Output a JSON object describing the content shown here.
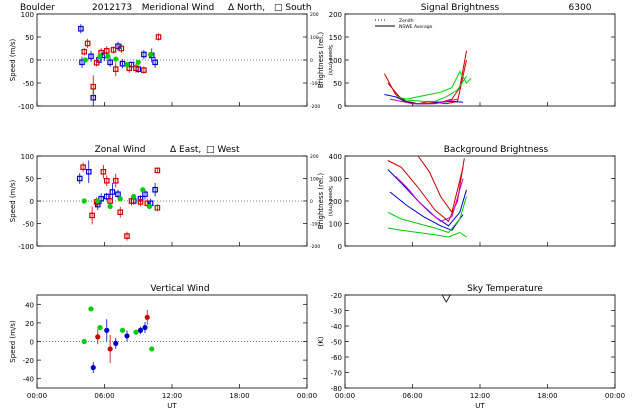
{
  "header": {
    "site": "Boulder",
    "date_code": "2012173"
  },
  "chart_data": [
    {
      "id": "meridional",
      "type": "scatter",
      "title": "Meridional Wind",
      "legend_a": "Δ North,",
      "legend_b": "□ South",
      "ylabel": "Speed (m/s)",
      "y2label": "Speed (m/s)",
      "xlim": [
        0,
        24
      ],
      "ylim": [
        -100,
        100
      ],
      "yticks": [
        -100,
        -50,
        0,
        50,
        100
      ],
      "y2ticks": [
        "-200",
        "-100",
        "0",
        "100",
        "200"
      ],
      "xtick_labels": [],
      "series": [
        {
          "name": "blue",
          "color": "#0000cc",
          "points": [
            [
              3.9,
              68,
              10
            ],
            [
              4.0,
              -5,
              12
            ],
            [
              4.8,
              8,
              12
            ],
            [
              5.0,
              -82,
              20
            ],
            [
              5.5,
              0,
              10
            ],
            [
              6.0,
              10,
              12
            ],
            [
              6.5,
              -5,
              10
            ],
            [
              7.2,
              30,
              10
            ],
            [
              7.6,
              -8,
              10
            ],
            [
              8.4,
              -10,
              6
            ],
            [
              9.0,
              -20,
              8
            ],
            [
              9.5,
              12,
              10
            ],
            [
              10.2,
              10,
              15
            ],
            [
              10.5,
              -5,
              12
            ]
          ]
        },
        {
          "name": "red",
          "color": "#cc0000",
          "points": [
            [
              4.2,
              18,
              8
            ],
            [
              4.5,
              36,
              10
            ],
            [
              5.0,
              -58,
              25
            ],
            [
              5.3,
              -6,
              8
            ],
            [
              5.7,
              16,
              10
            ],
            [
              6.2,
              20,
              10
            ],
            [
              6.8,
              22,
              8
            ],
            [
              7.0,
              -20,
              15
            ],
            [
              7.5,
              25,
              10
            ],
            [
              8.2,
              -18,
              10
            ],
            [
              8.8,
              -18,
              10
            ],
            [
              9.5,
              -22,
              8
            ],
            [
              10.8,
              50,
              8
            ]
          ]
        },
        {
          "name": "green",
          "color": "#00cc00",
          "points": [
            [
              4.3,
              0,
              0
            ],
            [
              5.6,
              8,
              0
            ],
            [
              6.3,
              8,
              0
            ],
            [
              7.0,
              2,
              0
            ],
            [
              8.0,
              -10,
              0
            ],
            [
              9.0,
              -5,
              0
            ],
            [
              10.1,
              12,
              0
            ]
          ]
        }
      ]
    },
    {
      "id": "zonal",
      "type": "scatter",
      "title": "Zonal Wind",
      "legend_a": "Δ East,",
      "legend_b": "□ West",
      "ylabel": "Speed (m/s)",
      "y2label": "Speed (m/s)",
      "xlim": [
        0,
        24
      ],
      "ylim": [
        -100,
        100
      ],
      "yticks": [
        -100,
        -50,
        0,
        50,
        100
      ],
      "y2ticks": [
        "-200",
        "-100",
        "0",
        "100",
        "200"
      ],
      "xtick_labels": [],
      "series": [
        {
          "name": "blue",
          "color": "#0000cc",
          "points": [
            [
              3.8,
              50,
              12
            ],
            [
              4.6,
              65,
              25
            ],
            [
              5.4,
              -8,
              12
            ],
            [
              5.7,
              5,
              12
            ],
            [
              6.2,
              10,
              8
            ],
            [
              6.7,
              20,
              20
            ],
            [
              7.2,
              15,
              10
            ],
            [
              8.6,
              0,
              8
            ],
            [
              9.2,
              5,
              8
            ],
            [
              9.6,
              15,
              12
            ],
            [
              10.1,
              -5,
              10
            ],
            [
              10.5,
              25,
              15
            ]
          ]
        },
        {
          "name": "red",
          "color": "#cc0000",
          "points": [
            [
              4.1,
              75,
              10
            ],
            [
              4.9,
              -32,
              20
            ],
            [
              5.3,
              -2,
              10
            ],
            [
              5.9,
              65,
              15
            ],
            [
              6.2,
              45,
              12
            ],
            [
              6.5,
              0,
              15
            ],
            [
              7.0,
              45,
              15
            ],
            [
              7.4,
              -25,
              12
            ],
            [
              8.0,
              -78,
              10
            ],
            [
              8.4,
              0,
              10
            ],
            [
              9.2,
              -2,
              10
            ],
            [
              9.8,
              -5,
              10
            ],
            [
              10.7,
              68,
              5
            ],
            [
              10.7,
              -15,
              8
            ]
          ]
        },
        {
          "name": "green",
          "color": "#00cc00",
          "points": [
            [
              4.2,
              0,
              0
            ],
            [
              5.4,
              0,
              0
            ],
            [
              6.5,
              -12,
              0
            ],
            [
              7.4,
              5,
              0
            ],
            [
              8.6,
              10,
              0
            ],
            [
              9.4,
              25,
              0
            ],
            [
              10.0,
              -12,
              0
            ]
          ]
        }
      ]
    },
    {
      "id": "vertical",
      "type": "scatter",
      "title": "Vertical Wind",
      "ylabel": "Speed (m/s)",
      "xlabel": "UT",
      "xlim": [
        0,
        24
      ],
      "ylim": [
        -50,
        50
      ],
      "yticks": [
        -40,
        -20,
        0,
        20,
        40
      ],
      "xtick_labels": [
        "00:00",
        "06:00",
        "12:00",
        "18:00",
        "00:00"
      ],
      "series": [
        {
          "name": "blue",
          "color": "#0000cc",
          "points": [
            [
              5.0,
              -28,
              6
            ],
            [
              6.2,
              12,
              12
            ],
            [
              7.0,
              -2,
              6
            ],
            [
              8.0,
              6,
              6
            ],
            [
              9.2,
              12,
              4
            ],
            [
              9.6,
              15,
              6
            ]
          ]
        },
        {
          "name": "red",
          "color": "#cc0000",
          "points": [
            [
              5.4,
              5,
              8
            ],
            [
              6.5,
              -8,
              15
            ],
            [
              9.8,
              26,
              8
            ]
          ]
        },
        {
          "name": "green",
          "color": "#00cc00",
          "points": [
            [
              4.2,
              0,
              0
            ],
            [
              4.8,
              35,
              0
            ],
            [
              5.6,
              15,
              0
            ],
            [
              7.6,
              12,
              0
            ],
            [
              8.8,
              10,
              0
            ],
            [
              10.2,
              -8,
              0
            ]
          ]
        }
      ]
    },
    {
      "id": "signal",
      "type": "line",
      "title": "Signal Brightness",
      "subtitle": "6300",
      "ylabel": "Brightness (rel.)",
      "xlim": [
        0,
        24
      ],
      "ylim": [
        0,
        200
      ],
      "yticks": [
        0,
        50,
        100,
        150,
        200
      ],
      "xtick_labels": [],
      "legend": [
        "Zenith",
        "NSWE Average"
      ],
      "series": [
        {
          "name": "red",
          "color": "#cc0000",
          "x": [
            3.5,
            4.5,
            5.5,
            6.5,
            7.5,
            8.5,
            9.5,
            10.2,
            10.8
          ],
          "y": [
            70,
            25,
            10,
            5,
            10,
            8,
            15,
            40,
            120
          ]
        },
        {
          "name": "red-2",
          "color": "#cc0000",
          "x": [
            3.8,
            5.0,
            6.0,
            7.0,
            8.0,
            9.0,
            10.0,
            10.8
          ],
          "y": [
            50,
            15,
            5,
            5,
            8,
            5,
            10,
            100
          ]
        },
        {
          "name": "green",
          "color": "#00cc00",
          "x": [
            4.5,
            5.5,
            6.5,
            7.5,
            8.5,
            9.5,
            10.2,
            10.8,
            11.2
          ],
          "y": [
            20,
            15,
            20,
            25,
            30,
            40,
            75,
            50,
            60
          ]
        },
        {
          "name": "green-2",
          "color": "#00cc00",
          "x": [
            5.0,
            6.0,
            7.0,
            8.0,
            9.0,
            10.0,
            10.8
          ],
          "y": [
            10,
            12,
            10,
            10,
            20,
            35,
            65
          ]
        },
        {
          "name": "blue",
          "color": "#0000cc",
          "x": [
            3.5,
            4.5,
            5.5,
            6.5,
            7.5,
            8.5,
            9.5,
            10.5
          ],
          "y": [
            25,
            20,
            8,
            5,
            5,
            8,
            10,
            8
          ]
        },
        {
          "name": "magenta",
          "color": "#cc00cc",
          "x": [
            4.0,
            5.0,
            6.0,
            7.0,
            8.0,
            9.0,
            10.0
          ],
          "y": [
            15,
            10,
            5,
            5,
            5,
            10,
            15
          ]
        }
      ]
    },
    {
      "id": "background",
      "type": "line",
      "title": "Background Brightness",
      "ylabel": "Brightness (rel.)",
      "xlim": [
        0,
        24
      ],
      "ylim": [
        0,
        400
      ],
      "yticks": [
        0,
        100,
        200,
        300,
        400
      ],
      "xtick_labels": [],
      "series": [
        {
          "name": "red",
          "color": "#cc0000",
          "x": [
            3.8,
            5.0,
            6.5,
            8.0,
            9.2,
            10.0,
            10.6
          ],
          "y": [
            380,
            350,
            260,
            160,
            110,
            200,
            390
          ]
        },
        {
          "name": "red-2",
          "color": "#cc0000",
          "x": [
            6.5,
            7.5,
            8.5,
            9.5,
            10.5
          ],
          "y": [
            400,
            330,
            220,
            150,
            350
          ]
        },
        {
          "name": "blue",
          "color": "#0000cc",
          "x": [
            3.8,
            5.0,
            6.5,
            8.0,
            9.2,
            10.2,
            10.8
          ],
          "y": [
            340,
            280,
            200,
            130,
            90,
            150,
            250
          ]
        },
        {
          "name": "blue-2",
          "color": "#0000cc",
          "x": [
            4.0,
            5.5,
            7.0,
            8.5,
            9.5,
            10.5
          ],
          "y": [
            240,
            180,
            130,
            90,
            70,
            140
          ]
        },
        {
          "name": "green",
          "color": "#00cc00",
          "x": [
            3.8,
            5.0,
            6.5,
            8.0,
            9.2,
            10.2,
            10.8
          ],
          "y": [
            150,
            120,
            100,
            80,
            60,
            120,
            220
          ]
        },
        {
          "name": "green-2",
          "color": "#00cc00",
          "x": [
            3.8,
            5.0,
            6.5,
            8.0,
            9.2,
            10.2,
            10.8
          ],
          "y": [
            80,
            70,
            60,
            50,
            40,
            60,
            40
          ]
        },
        {
          "name": "magenta",
          "color": "#cc00cc",
          "x": [
            4.5,
            5.5,
            6.5,
            7.5,
            8.5,
            9.5,
            10.5
          ],
          "y": [
            310,
            260,
            200,
            150,
            110,
            130,
            300
          ]
        }
      ]
    },
    {
      "id": "sky",
      "type": "scatter",
      "title": "Sky Temperature",
      "ylabel": "(K)",
      "xlabel": "UT",
      "xlim": [
        0,
        24
      ],
      "ylim": [
        -80,
        -20
      ],
      "yticks": [
        -80,
        -70,
        -60,
        -50,
        -40,
        -30,
        -20
      ],
      "xtick_labels": [
        "00:00",
        "06:00",
        "12:00",
        "18:00",
        "00:00"
      ],
      "series": [
        {
          "name": "black",
          "color": "#000000",
          "points": [
            [
              9.0,
              -22,
              0
            ]
          ]
        }
      ]
    }
  ]
}
